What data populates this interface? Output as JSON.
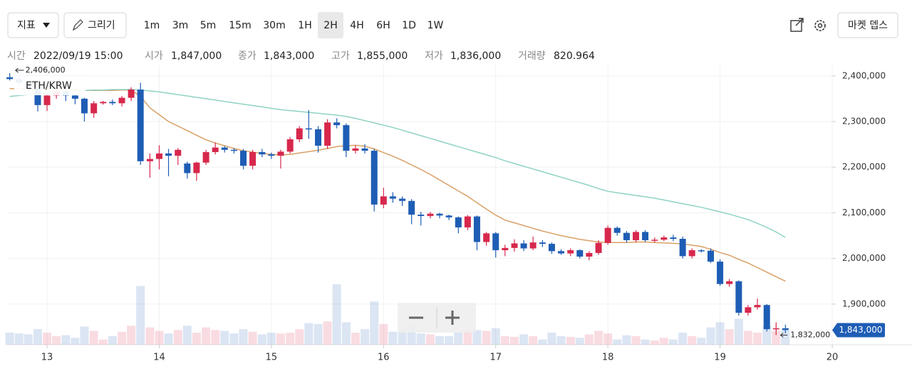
{
  "toolbar": {
    "indicator": "지표",
    "draw": "그리기",
    "intervals": [
      "1m",
      "3m",
      "5m",
      "15m",
      "30m",
      "1H",
      "2H",
      "4H",
      "6H",
      "1D",
      "1W"
    ],
    "active_interval": "2H",
    "market_depth": "마켓 뎁스"
  },
  "info": [
    {
      "label": "시간",
      "value": "2022/09/19 15:00"
    },
    {
      "label": "시가",
      "value": "1,847,000"
    },
    {
      "label": "종가",
      "value": "1,843,000"
    },
    {
      "label": "고가",
      "value": "1,855,000"
    },
    {
      "label": "저가",
      "value": "1,836,000"
    },
    {
      "label": "거래량",
      "value": "820.964"
    }
  ],
  "chart_data": {
    "type": "candlestick",
    "symbol": "ETH/KRW",
    "up_color": "#d7284c",
    "down_color": "#1e5db5",
    "grid": true,
    "xlim": [
      12.644,
      20
    ],
    "xticks": [
      13,
      14,
      15,
      16,
      17,
      18,
      19,
      20
    ],
    "ylim": [
      1811000,
      2423000
    ],
    "yticks": [
      {
        "value": 1900000,
        "label": "1,900,000"
      },
      {
        "value": 2000000,
        "label": "2,000,000"
      },
      {
        "value": 2100000,
        "label": "2,100,000"
      },
      {
        "value": 2200000,
        "label": "2,200,000"
      },
      {
        "value": 2300000,
        "label": "2,300,000"
      },
      {
        "value": 2400000,
        "label": "2,400,000"
      }
    ],
    "x": [
      12.667,
      12.75,
      12.833,
      12.917,
      13,
      13.083,
      13.167,
      13.25,
      13.333,
      13.417,
      13.5,
      13.583,
      13.667,
      13.75,
      13.833,
      13.917,
      14,
      14.083,
      14.167,
      14.25,
      14.333,
      14.417,
      14.5,
      14.583,
      14.667,
      14.75,
      14.833,
      14.917,
      15,
      15.083,
      15.167,
      15.25,
      15.333,
      15.417,
      15.5,
      15.583,
      15.667,
      15.75,
      15.833,
      15.917,
      16,
      16.083,
      16.167,
      16.25,
      16.333,
      16.417,
      16.5,
      16.583,
      16.667,
      16.75,
      16.833,
      16.917,
      17,
      17.083,
      17.167,
      17.25,
      17.333,
      17.417,
      17.5,
      17.583,
      17.667,
      17.75,
      17.833,
      17.917,
      18,
      18.083,
      18.167,
      18.25,
      18.333,
      18.417,
      18.5,
      18.583,
      18.667,
      18.75,
      18.833,
      18.917,
      19,
      19.083,
      19.167,
      19.25,
      19.333,
      19.417,
      19.5,
      19.583
    ],
    "open": [
      2397000,
      2393000,
      2385000,
      2372000,
      2336000,
      2357000,
      2366000,
      2357000,
      2350000,
      2318000,
      2340000,
      2343000,
      2340000,
      2352000,
      2370000,
      2213000,
      2218000,
      2230000,
      2225000,
      2208000,
      2187000,
      2210000,
      2233000,
      2243000,
      2238000,
      2236000,
      2203000,
      2233000,
      2228000,
      2225000,
      2234000,
      2261000,
      2285000,
      2283000,
      2247000,
      2298000,
      2292000,
      2236000,
      2241000,
      2236000,
      2118000,
      2136000,
      2131000,
      2126000,
      2096000,
      2093000,
      2098000,
      2094000,
      2090000,
      2068000,
      2092000,
      2036000,
      2055000,
      2018000,
      2023000,
      2033000,
      2022000,
      2035000,
      2032000,
      2016000,
      2011000,
      2018000,
      2004000,
      2012000,
      2034000,
      2067000,
      2056000,
      2040000,
      2058000,
      2040000,
      2041000,
      2046000,
      2043000,
      2005000,
      2018000,
      2017000,
      1993000,
      1944000,
      1950000,
      1881000,
      1893000,
      1898000,
      1845000,
      1847000
    ],
    "high": [
      2406000,
      2398000,
      2390000,
      2373000,
      2365000,
      2372000,
      2370000,
      2360000,
      2352000,
      2345000,
      2345000,
      2348000,
      2356000,
      2375000,
      2385000,
      2230000,
      2248000,
      2240000,
      2242000,
      2212000,
      2212000,
      2238000,
      2254000,
      2246000,
      2242000,
      2240000,
      2238000,
      2240000,
      2232000,
      2238000,
      2266000,
      2290000,
      2325000,
      2290000,
      2305000,
      2307000,
      2296000,
      2248000,
      2250000,
      2240000,
      2155000,
      2145000,
      2136000,
      2130000,
      2102000,
      2102000,
      2100000,
      2096000,
      2092000,
      2095000,
      2094000,
      2058000,
      2058000,
      2030000,
      2042000,
      2040000,
      2048000,
      2040000,
      2035000,
      2020000,
      2022000,
      2020000,
      2016000,
      2040000,
      2072000,
      2070000,
      2060000,
      2062000,
      2062000,
      2046000,
      2050000,
      2052000,
      2048000,
      2022000,
      2020000,
      2022000,
      1998000,
      1955000,
      1952000,
      1898000,
      1912000,
      1900000,
      1860000,
      1855000
    ],
    "low": [
      2390000,
      2380000,
      2366000,
      2322000,
      2323000,
      2350000,
      2345000,
      2338000,
      2300000,
      2308000,
      2337000,
      2336000,
      2333000,
      2345000,
      2205000,
      2177000,
      2195000,
      2180000,
      2205000,
      2175000,
      2170000,
      2205000,
      2228000,
      2232000,
      2230000,
      2195000,
      2195000,
      2222000,
      2218000,
      2197000,
      2230000,
      2255000,
      2262000,
      2232000,
      2240000,
      2285000,
      2222000,
      2230000,
      2230000,
      2103000,
      2110000,
      2122000,
      2115000,
      2075000,
      2072000,
      2088000,
      2088000,
      2084000,
      2055000,
      2062000,
      2018000,
      2028000,
      2002000,
      2005000,
      2015000,
      2016000,
      2018000,
      2025000,
      2010000,
      2008000,
      2005000,
      2000000,
      1996000,
      2008000,
      2030000,
      2050000,
      2035000,
      2035000,
      2036000,
      2035000,
      2038000,
      2038000,
      2000000,
      2000000,
      2013000,
      1990000,
      1940000,
      1938000,
      1875000,
      1875000,
      1888000,
      1840000,
      1832000,
      1836000
    ],
    "close": [
      2393000,
      2385000,
      2372000,
      2336000,
      2357000,
      2366000,
      2357000,
      2350000,
      2318000,
      2340000,
      2343000,
      2340000,
      2352000,
      2370000,
      2213000,
      2218000,
      2230000,
      2225000,
      2238000,
      2187000,
      2210000,
      2233000,
      2243000,
      2238000,
      2236000,
      2203000,
      2233000,
      2228000,
      2225000,
      2234000,
      2261000,
      2285000,
      2283000,
      2247000,
      2298000,
      2292000,
      2236000,
      2241000,
      2236000,
      2118000,
      2136000,
      2131000,
      2126000,
      2096000,
      2093000,
      2098000,
      2094000,
      2090000,
      2068000,
      2092000,
      2036000,
      2055000,
      2018000,
      2023000,
      2033000,
      2022000,
      2035000,
      2032000,
      2016000,
      2011000,
      2018000,
      2004000,
      2012000,
      2034000,
      2067000,
      2056000,
      2040000,
      2058000,
      2040000,
      2041000,
      2046000,
      2043000,
      2005000,
      2018000,
      2017000,
      1993000,
      1944000,
      1950000,
      1881000,
      1893000,
      1898000,
      1845000,
      1847000,
      1843000
    ],
    "volume": [
      700,
      650,
      600,
      900,
      700,
      500,
      550,
      400,
      1050,
      800,
      300,
      500,
      750,
      1100,
      3400,
      1000,
      800,
      650,
      850,
      1100,
      700,
      1000,
      850,
      800,
      650,
      900,
      750,
      600,
      700,
      650,
      700,
      900,
      1250,
      1200,
      1350,
      3500,
      1300,
      700,
      900,
      2500,
      1200,
      750,
      800,
      1200,
      650,
      600,
      500,
      500,
      700,
      900,
      850,
      800,
      950,
      500,
      450,
      600,
      500,
      300,
      700,
      500,
      450,
      400,
      600,
      800,
      650,
      300,
      550,
      500,
      300,
      250,
      400,
      300,
      700,
      500,
      400,
      1000,
      1300,
      900,
      1500,
      800,
      700,
      1100,
      800,
      820.964
    ],
    "lines": [
      {
        "color": "#d9a066",
        "values": [
          2372000,
          2372000,
          2371000,
          2371000,
          2370000,
          2370000,
          2370000,
          2369000,
          2368000,
          2368000,
          2368000,
          2368000,
          2369000,
          2369000,
          2355000,
          2330000,
          2315000,
          2300000,
          2290000,
          2280000,
          2270000,
          2260000,
          2253000,
          2247000,
          2241000,
          2236000,
          2233000,
          2230000,
          2228000,
          2227000,
          2228000,
          2231000,
          2234000,
          2237000,
          2241000,
          2245000,
          2247000,
          2248000,
          2246000,
          2240000,
          2232000,
          2224000,
          2215000,
          2205000,
          2195000,
          2184000,
          2172000,
          2160000,
          2148000,
          2136000,
          2122000,
          2108000,
          2095000,
          2084000,
          2078000,
          2072000,
          2066000,
          2060000,
          2055000,
          2050000,
          2046000,
          2042000,
          2039000,
          2036000,
          2035000,
          2035000,
          2035000,
          2036000,
          2036000,
          2035000,
          2034000,
          2033000,
          2032000,
          2029000,
          2026000,
          2020000,
          2013000,
          2007000,
          1998000,
          1990000,
          1980000,
          1970000,
          1960000,
          1950000
        ]
      },
      {
        "color": "#8fd3c4",
        "values": [
          2355000,
          2357000,
          2359000,
          2361000,
          2363000,
          2365000,
          2366000,
          2367000,
          2368000,
          2369000,
          2369000,
          2370000,
          2370000,
          2370000,
          2369000,
          2367000,
          2365000,
          2362000,
          2359000,
          2356000,
          2353000,
          2350000,
          2347000,
          2344000,
          2341000,
          2338000,
          2335000,
          2332000,
          2329000,
          2326000,
          2324000,
          2322000,
          2320000,
          2318000,
          2316000,
          2314000,
          2311000,
          2307000,
          2302000,
          2297000,
          2292000,
          2287000,
          2281000,
          2275000,
          2269000,
          2263000,
          2257000,
          2251000,
          2245000,
          2239000,
          2233000,
          2227000,
          2221000,
          2214000,
          2208000,
          2202000,
          2196000,
          2190000,
          2184000,
          2178000,
          2172000,
          2166000,
          2160000,
          2153000,
          2147000,
          2144000,
          2141000,
          2138000,
          2135000,
          2132000,
          2128000,
          2124000,
          2120000,
          2116000,
          2112000,
          2107000,
          2102000,
          2097000,
          2091000,
          2085000,
          2077000,
          2068000,
          2058000,
          2046000
        ]
      }
    ],
    "high_marker": {
      "value": 2406000,
      "label": "2,406,000"
    },
    "low_marker": {
      "value": 1832000,
      "label": "1,832,000"
    },
    "current_price": {
      "value": 1843000,
      "label": "1,843,000"
    }
  }
}
